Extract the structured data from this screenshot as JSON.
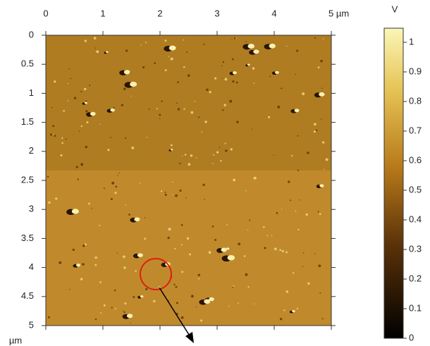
{
  "chart_data": {
    "type": "image",
    "xlim": [
      0,
      5
    ],
    "xticks": [
      0,
      1,
      2,
      3,
      4,
      {
        "value": 5,
        "label": "5 µm"
      }
    ],
    "ylim": [
      0,
      5
    ],
    "yticks": [
      0,
      0.5,
      1,
      1.5,
      2,
      2.5,
      3,
      3.5,
      4,
      4.5,
      5
    ],
    "y_label": "µm",
    "colorbar": {
      "label": "V",
      "lim": [
        0,
        1
      ],
      "ticks": [
        0,
        0.1,
        0.2,
        0.3,
        0.4,
        0.5,
        0.6,
        0.7,
        0.8,
        0.9,
        1
      ]
    }
  }
}
